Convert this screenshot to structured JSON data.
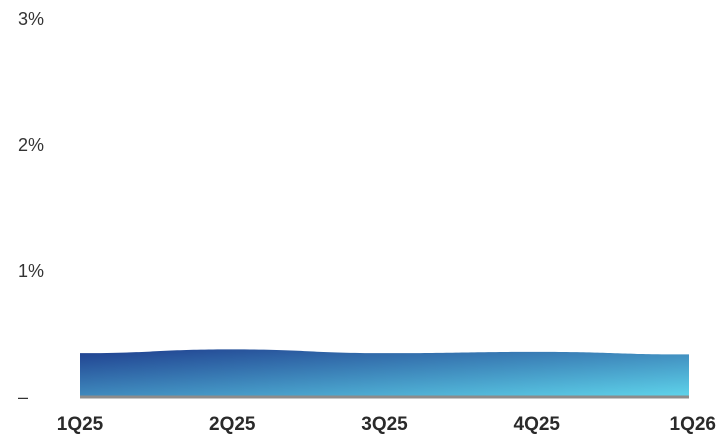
{
  "chart_data": {
    "type": "area",
    "categories": [
      "1Q25",
      "2Q25",
      "3Q25",
      "4Q25",
      "1Q26"
    ],
    "values": [
      0.34,
      0.37,
      0.34,
      0.35,
      0.33
    ],
    "ylim": [
      0,
      3
    ],
    "ytick_values": [
      0,
      1,
      2,
      3
    ],
    "ytick_labels": [
      "–",
      "1%",
      "2%",
      "3%"
    ],
    "grid": false,
    "colors": {
      "area_gradient_start": "#1f3f8f",
      "area_gradient_end": "#5ed3ea",
      "baseline": "#8c8c8c",
      "tick_text": "#333333"
    }
  }
}
